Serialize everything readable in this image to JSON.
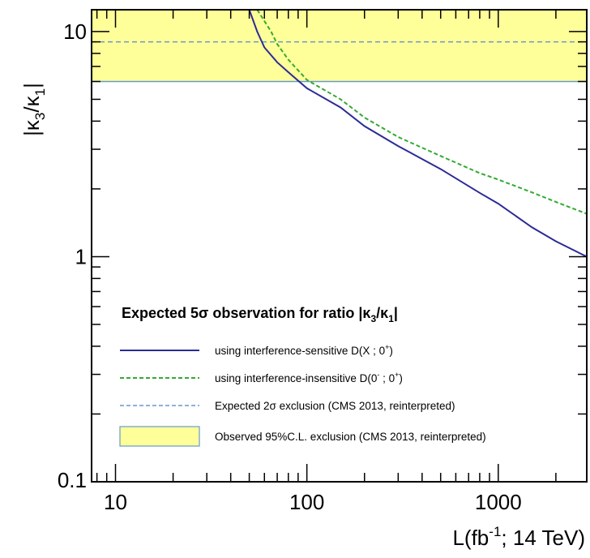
{
  "chart_data": {
    "type": "line",
    "xscale": "log",
    "yscale": "log",
    "xlim": [
      7.5,
      2900
    ],
    "ylim": [
      0.1,
      12.5
    ],
    "xlabel": "L(fb",
    "xlabel_sup": "-1",
    "xlabel_suffix": "; 14 TeV)",
    "ylabel": "|κ",
    "ylabel_sub1": "3",
    "ylabel_mid": "/κ",
    "ylabel_sub2": "1",
    "ylabel_end": "|",
    "x_ticks": [
      {
        "value": 10,
        "label": "10"
      },
      {
        "value": 100,
        "label": "100"
      },
      {
        "value": 1000,
        "label": "1000"
      }
    ],
    "y_ticks": [
      {
        "value": 0.1,
        "label": "0.1"
      },
      {
        "value": 1,
        "label": "1"
      },
      {
        "value": 10,
        "label": "10"
      }
    ],
    "legend": {
      "placement": "lower-left",
      "title": "Expected 5σ observation for ratio |κ",
      "title_sub1": "3",
      "title_mid": "/κ",
      "title_sub2": "1",
      "title_end": "|",
      "entries": [
        {
          "key": "sensitive",
          "label": "using interference-sensitive D(X ; 0",
          "sup": "+",
          "end": ")"
        },
        {
          "key": "insensitive",
          "label": "using interference-insensitive D(0",
          "sup": "-",
          "mid": " ; 0",
          "sup2": "+",
          "end": ")"
        },
        {
          "key": "expected",
          "label": "Expected 2σ exclusion (CMS 2013, reinterpreted)"
        },
        {
          "key": "observed",
          "label": "Observed 95%C.L. exclusion (CMS 2013, reinterpreted)"
        }
      ]
    },
    "bands": [
      {
        "key": "observed",
        "ymin": 6.0,
        "ymax": 12.5,
        "fill": "#ffff99",
        "stroke": "#6699cc"
      }
    ],
    "hlines": [
      {
        "key": "expected",
        "y": 9.0,
        "color": "#6699cc",
        "dash": true
      }
    ],
    "series": [
      {
        "key": "sensitive",
        "color": "#2b2b96",
        "dash": false,
        "points": [
          [
            50,
            12.5
          ],
          [
            55,
            10
          ],
          [
            60,
            8.5
          ],
          [
            70,
            7.3
          ],
          [
            80,
            6.6
          ],
          [
            100,
            5.6
          ],
          [
            150,
            4.6
          ],
          [
            200,
            3.8
          ],
          [
            300,
            3.1
          ],
          [
            500,
            2.45
          ],
          [
            800,
            1.92
          ],
          [
            1000,
            1.72
          ],
          [
            1500,
            1.35
          ],
          [
            2000,
            1.17
          ],
          [
            2900,
            1.0
          ]
        ]
      },
      {
        "key": "insensitive",
        "color": "#33aa33",
        "dash": true,
        "points": [
          [
            55,
            12.5
          ],
          [
            65,
            10
          ],
          [
            70,
            8.8
          ],
          [
            80,
            7.5
          ],
          [
            100,
            6.1
          ],
          [
            150,
            5.0
          ],
          [
            200,
            4.15
          ],
          [
            300,
            3.4
          ],
          [
            500,
            2.8
          ],
          [
            800,
            2.35
          ],
          [
            1000,
            2.2
          ],
          [
            1500,
            1.93
          ],
          [
            2000,
            1.75
          ],
          [
            2900,
            1.55
          ]
        ]
      }
    ]
  }
}
